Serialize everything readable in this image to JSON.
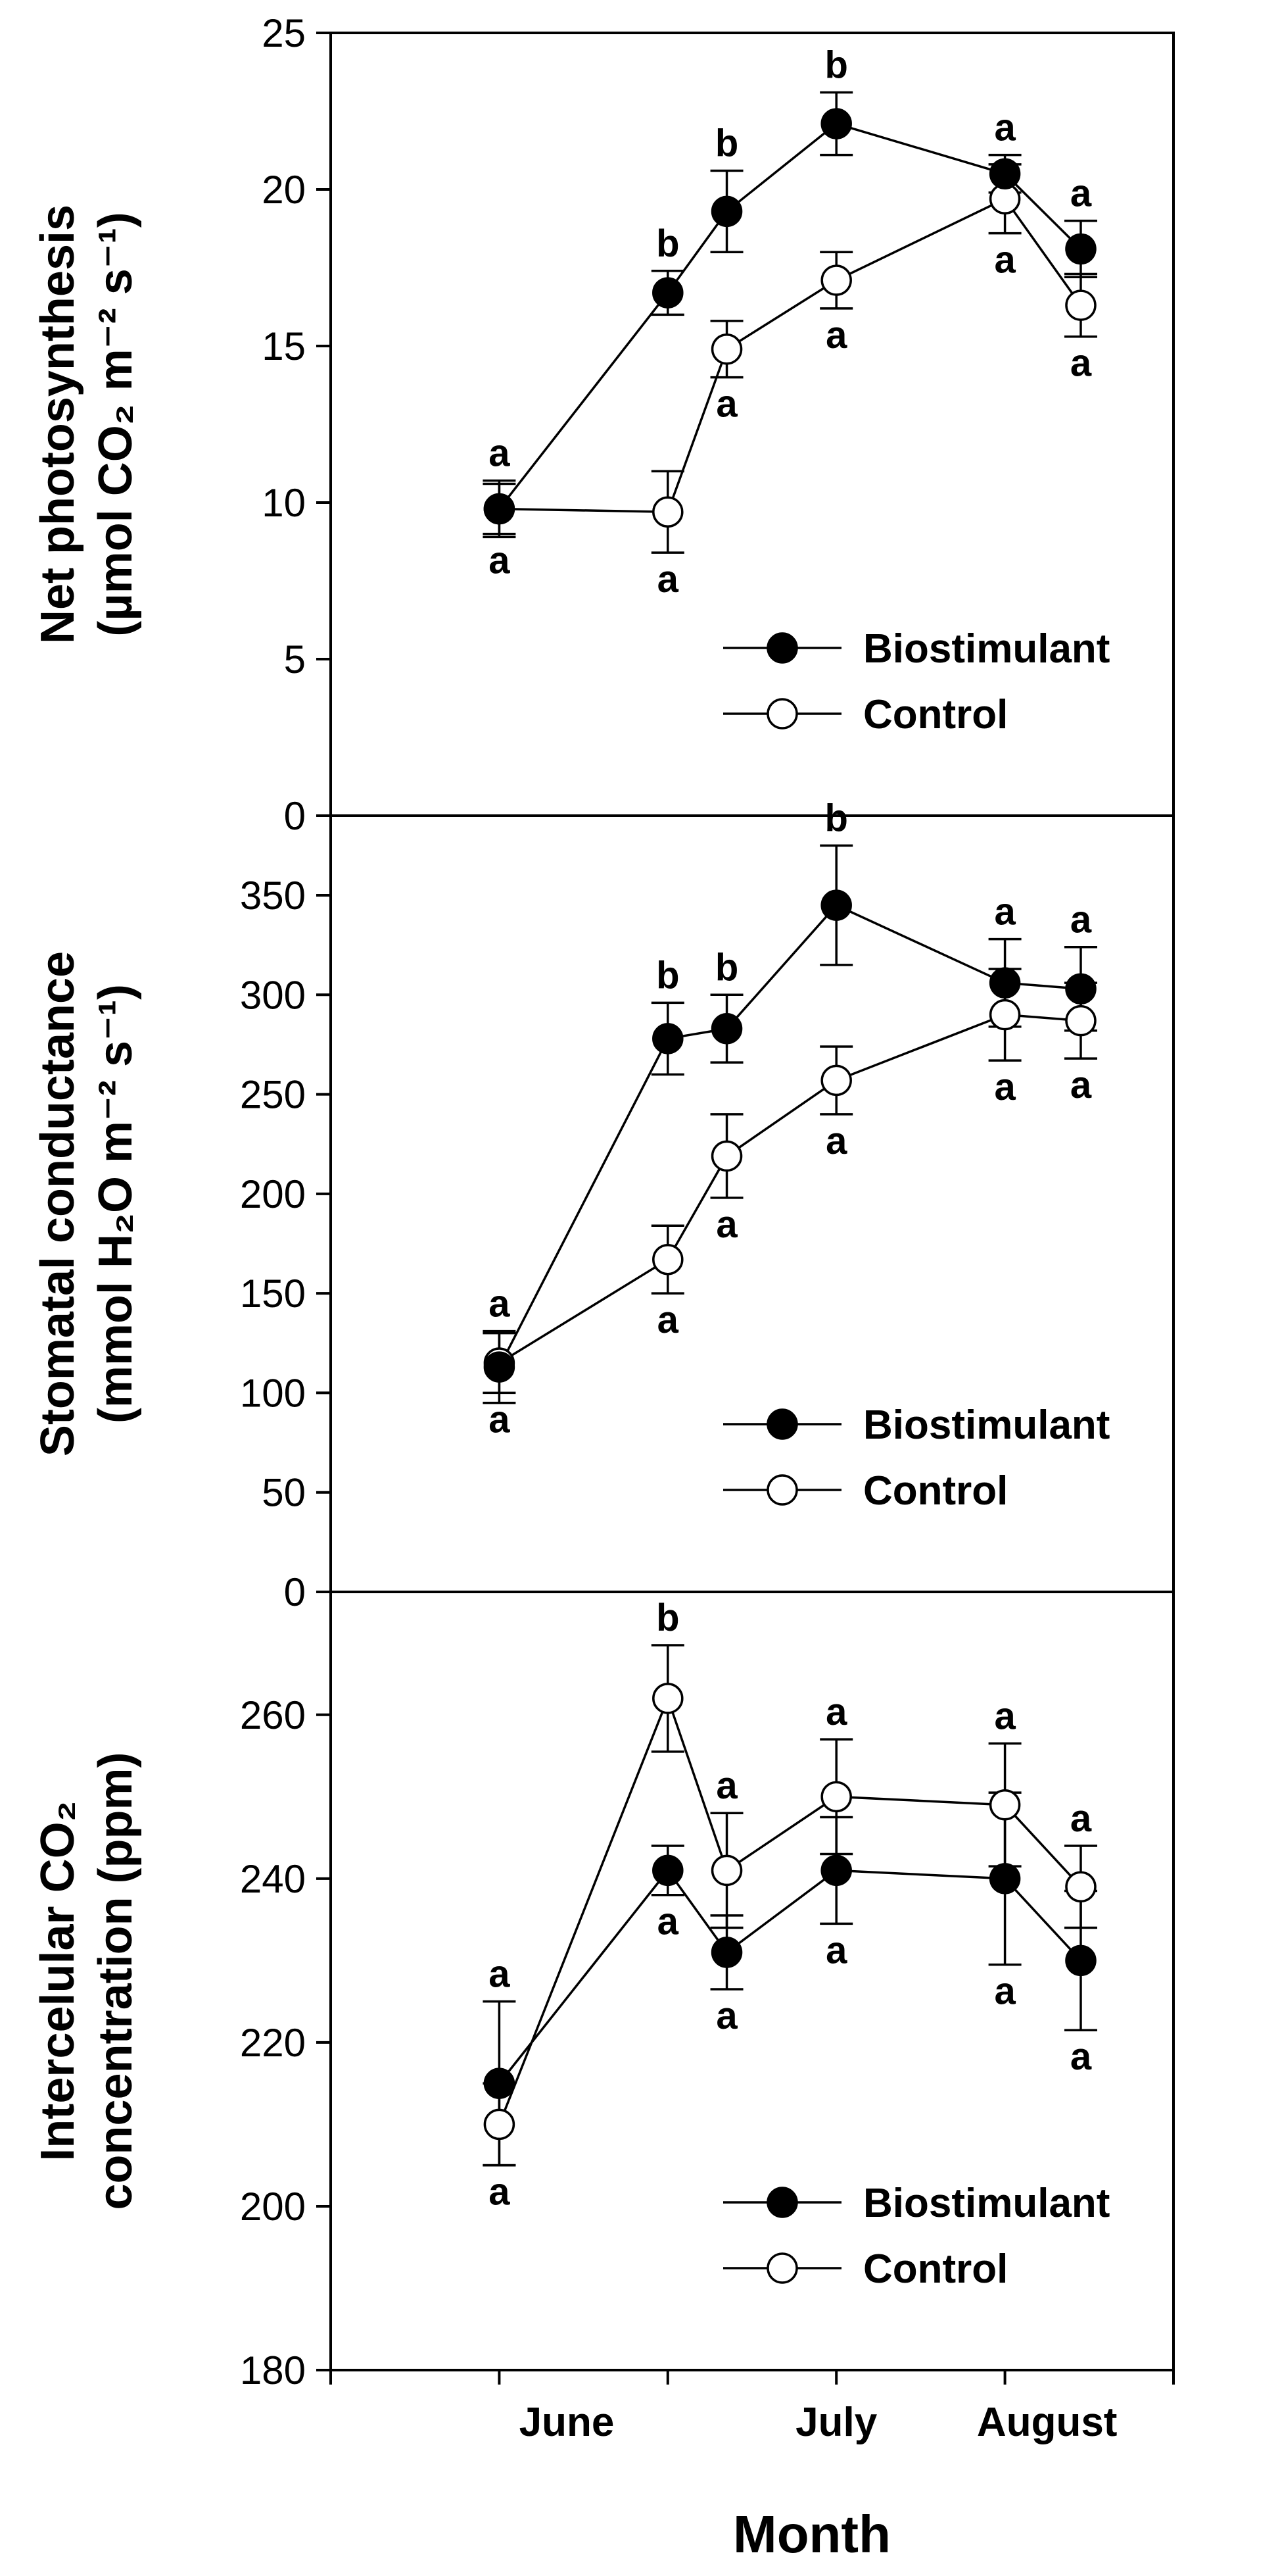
{
  "chart_data": [
    {
      "type": "line",
      "ylabel_line1": "Net photosynthesis",
      "ylabel_line2": "(µmol CO₂ m⁻² s⁻¹)",
      "ylim": [
        0,
        25
      ],
      "yticks": [
        0,
        5,
        10,
        15,
        20,
        25
      ],
      "x": [
        1,
        2,
        2.35,
        3,
        4,
        4.45
      ],
      "legend_position": "bottom-right",
      "series": [
        {
          "name": "Biostimulant",
          "marker": "filled",
          "values": [
            9.8,
            16.7,
            19.3,
            22.1,
            20.5,
            18.1
          ],
          "errors": [
            0.9,
            0.7,
            1.3,
            1.0,
            0.6,
            0.9
          ],
          "letters": [
            "a",
            "b",
            "b",
            "b",
            "a",
            "a"
          ],
          "letter_side": [
            "above",
            "above",
            "above",
            "above",
            "above",
            "above"
          ]
        },
        {
          "name": "Control",
          "marker": "open",
          "values": [
            9.8,
            9.7,
            14.9,
            17.1,
            19.7,
            16.3
          ],
          "errors": [
            0.8,
            1.3,
            0.9,
            0.9,
            1.1,
            1.0
          ],
          "letters": [
            "a",
            "a",
            "a",
            "a",
            "a",
            "a"
          ],
          "letter_side": [
            "below",
            "below",
            "below",
            "below",
            "below",
            "below"
          ]
        }
      ]
    },
    {
      "type": "line",
      "ylabel_line1": "Stomatal conductance",
      "ylabel_line2": "(mmol H₂O m⁻² s⁻¹)",
      "ylim": [
        0,
        390
      ],
      "yticks": [
        0,
        50,
        100,
        150,
        200,
        250,
        300,
        350
      ],
      "x": [
        1,
        2,
        2.35,
        3,
        4,
        4.45
      ],
      "legend_position": "bottom-right",
      "series": [
        {
          "name": "Biostimulant",
          "marker": "filled",
          "values": [
            113,
            278,
            283,
            345,
            306,
            303
          ],
          "errors": [
            18,
            18,
            17,
            30,
            22,
            21
          ],
          "letters": [
            "a",
            "b",
            "b",
            "b",
            "a",
            "a"
          ],
          "letter_side": [
            "above",
            "above",
            "above",
            "above",
            "above",
            "above"
          ]
        },
        {
          "name": "Control",
          "marker": "open",
          "values": [
            115,
            167,
            219,
            257,
            290,
            287
          ],
          "errors": [
            15,
            17,
            21,
            17,
            23,
            19
          ],
          "letters": [
            "a",
            "a",
            "a",
            "a",
            "a",
            "a"
          ],
          "letter_side": [
            "below",
            "below",
            "below",
            "below",
            "below",
            "below"
          ]
        }
      ]
    },
    {
      "type": "line",
      "ylabel_line1": "Intercelular CO₂",
      "ylabel_line2": "concentration (ppm)",
      "ylim": [
        180,
        275
      ],
      "yticks": [
        180,
        200,
        220,
        240,
        260
      ],
      "x": [
        1,
        2,
        2.35,
        3,
        4,
        4.45
      ],
      "xlabel": "Month",
      "categories": [
        {
          "label": "June",
          "x": 1.4
        },
        {
          "label": "July",
          "x": 3.0
        },
        {
          "label": "August",
          "x": 4.25
        }
      ],
      "xlim": [
        0,
        5
      ],
      "legend_position": "bottom-right",
      "series": [
        {
          "name": "Biostimulant",
          "marker": "filled",
          "values": [
            215,
            241,
            231,
            241,
            240,
            230
          ],
          "errors": [
            10,
            3,
            4.5,
            6.5,
            10.5,
            8.5
          ],
          "letters": [
            "a",
            "a",
            "a",
            "a",
            "a",
            "a"
          ],
          "letter_side": [
            "above",
            "below",
            "below",
            "below",
            "below",
            "below"
          ]
        },
        {
          "name": "Control",
          "marker": "open",
          "values": [
            210,
            262,
            241,
            250,
            249,
            239
          ],
          "errors": [
            5,
            6.5,
            7,
            7,
            7.5,
            5
          ],
          "letters": [
            "a",
            "b",
            "a",
            "a",
            "a",
            "a"
          ],
          "letter_side": [
            "below",
            "above",
            "above",
            "above",
            "above",
            "above"
          ]
        }
      ]
    }
  ]
}
